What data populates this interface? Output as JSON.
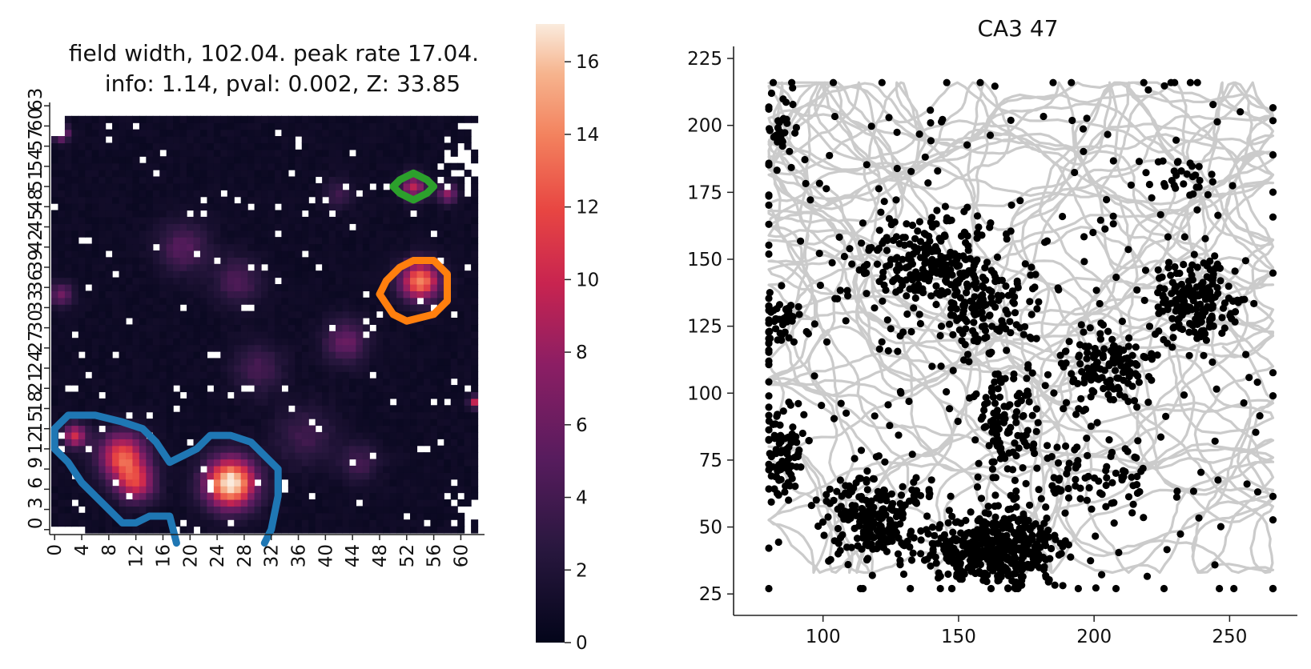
{
  "chart_data": [
    {
      "type": "heatmap",
      "title_line1": "field width, 102.04. peak rate 17.04.",
      "title_line2": "info: 1.14, pval: 0.002, Z: 33.85",
      "grid_size": 64,
      "x_ticks": [
        0,
        4,
        8,
        12,
        16,
        20,
        24,
        28,
        32,
        36,
        40,
        44,
        48,
        52,
        56,
        60
      ],
      "y_ticks": [
        0,
        3,
        6,
        9,
        12,
        15,
        18,
        21,
        24,
        27,
        30,
        33,
        36,
        39,
        42,
        45,
        48,
        51,
        54,
        57,
        60,
        63
      ],
      "colorbar": {
        "min": 0,
        "max": 17.04,
        "ticks": [
          0,
          2,
          4,
          6,
          8,
          10,
          12,
          14,
          16
        ]
      },
      "hotspots": [
        {
          "x": 26,
          "y": 7,
          "peak": 17.04,
          "spread": 2.6
        },
        {
          "x": 10,
          "y": 11,
          "peak": 11.5,
          "spread": 2.4
        },
        {
          "x": 12,
          "y": 7,
          "peak": 9.0,
          "spread": 2.0
        },
        {
          "x": 3,
          "y": 14,
          "peak": 9.5,
          "spread": 1.2
        },
        {
          "x": 54,
          "y": 37,
          "peak": 13.5,
          "spread": 2.0
        },
        {
          "x": 53,
          "y": 51,
          "peak": 8.5,
          "spread": 1.3
        },
        {
          "x": 58,
          "y": 50,
          "peak": 7.0,
          "spread": 1.0
        },
        {
          "x": 43,
          "y": 28,
          "peak": 5.2,
          "spread": 2.2
        },
        {
          "x": 19,
          "y": 42,
          "peak": 4.2,
          "spread": 2.6
        },
        {
          "x": 27,
          "y": 37,
          "peak": 3.8,
          "spread": 2.4
        },
        {
          "x": 30,
          "y": 24,
          "peak": 3.3,
          "spread": 2.6
        },
        {
          "x": 37,
          "y": 14,
          "peak": 3.0,
          "spread": 3.0
        },
        {
          "x": 45,
          "y": 10,
          "peak": 3.2,
          "spread": 2.0
        },
        {
          "x": 1,
          "y": 35,
          "peak": 5.5,
          "spread": 1.2
        },
        {
          "x": 1,
          "y": 59,
          "peak": 9.0,
          "spread": 0.8
        },
        {
          "x": 42,
          "y": 50,
          "peak": 3.0,
          "spread": 1.5
        },
        {
          "x": 62,
          "y": 19,
          "peak": 9.0,
          "spread": 0.6
        }
      ],
      "contours": [
        {
          "name": "field-1",
          "color": "#1f77b4",
          "points": [
            [
              0,
              15
            ],
            [
              2,
              17
            ],
            [
              6,
              17
            ],
            [
              10,
              16
            ],
            [
              13,
              15
            ],
            [
              15,
              13
            ],
            [
              17,
              10
            ],
            [
              19,
              11
            ],
            [
              21,
              12
            ],
            [
              23,
              14
            ],
            [
              26,
              14
            ],
            [
              29,
              13
            ],
            [
              31,
              11
            ],
            [
              33,
              9
            ],
            [
              33,
              5
            ],
            [
              32,
              0
            ],
            [
              31,
              -2
            ]
          ]
        },
        {
          "name": "field-1-lower",
          "color": "#1f77b4",
          "points": [
            [
              18,
              -2
            ],
            [
              17,
              2
            ],
            [
              14,
              2
            ],
            [
              12,
              1
            ],
            [
              10,
              1
            ],
            [
              7,
              4
            ],
            [
              4,
              7
            ],
            [
              2,
              10
            ],
            [
              0,
              12
            ],
            [
              0,
              15
            ]
          ]
        },
        {
          "name": "field-2",
          "color": "#ff7f0e",
          "points": [
            [
              51,
              39
            ],
            [
              53,
              40
            ],
            [
              56,
              40
            ],
            [
              58,
              38
            ],
            [
              58,
              34
            ],
            [
              56,
              32
            ],
            [
              52,
              31
            ],
            [
              50,
              32
            ],
            [
              48,
              35
            ],
            [
              49,
              37
            ],
            [
              51,
              39
            ]
          ]
        },
        {
          "name": "field-3",
          "color": "#2ca02c",
          "points": [
            [
              51,
              52
            ],
            [
              53,
              53
            ],
            [
              55,
              52
            ],
            [
              56,
              51
            ],
            [
              55,
              50
            ],
            [
              53,
              49
            ],
            [
              51,
              50
            ],
            [
              50,
              51
            ],
            [
              51,
              52
            ]
          ]
        }
      ]
    },
    {
      "type": "scatter",
      "title": "CA3 47",
      "xlim": [
        67,
        275
      ],
      "ylim": [
        17,
        228
      ],
      "x_ticks": [
        100,
        150,
        200,
        250
      ],
      "y_ticks": [
        25,
        50,
        75,
        100,
        125,
        150,
        175,
        200,
        225
      ],
      "path_color": "#c8c8c8",
      "spike_color": "#000000",
      "arena": {
        "x_min": 80,
        "x_max": 266,
        "y_min": 27,
        "y_max": 216
      },
      "clusters": [
        {
          "x": 163,
          "y": 42,
          "sx": 13,
          "sy": 7,
          "n": 420
        },
        {
          "x": 118,
          "y": 52,
          "sx": 9,
          "sy": 9,
          "n": 230
        },
        {
          "x": 140,
          "y": 148,
          "sx": 13,
          "sy": 10,
          "n": 230
        },
        {
          "x": 158,
          "y": 132,
          "sx": 8,
          "sy": 9,
          "n": 110
        },
        {
          "x": 238,
          "y": 134,
          "sx": 7,
          "sy": 7,
          "n": 170
        },
        {
          "x": 206,
          "y": 110,
          "sx": 8,
          "sy": 7,
          "n": 130
        },
        {
          "x": 168,
          "y": 90,
          "sx": 6,
          "sy": 10,
          "n": 90
        },
        {
          "x": 86,
          "y": 78,
          "sx": 4,
          "sy": 8,
          "n": 90
        },
        {
          "x": 84,
          "y": 128,
          "sx": 4,
          "sy": 5,
          "n": 45
        },
        {
          "x": 85,
          "y": 198,
          "sx": 3,
          "sy": 6,
          "n": 30
        },
        {
          "x": 200,
          "y": 67,
          "sx": 14,
          "sy": 7,
          "n": 80
        },
        {
          "x": 235,
          "y": 180,
          "sx": 8,
          "sy": 5,
          "n": 30
        },
        {
          "x": 170,
          "y": 120,
          "sx": 60,
          "sy": 55,
          "n": 320
        }
      ]
    }
  ]
}
